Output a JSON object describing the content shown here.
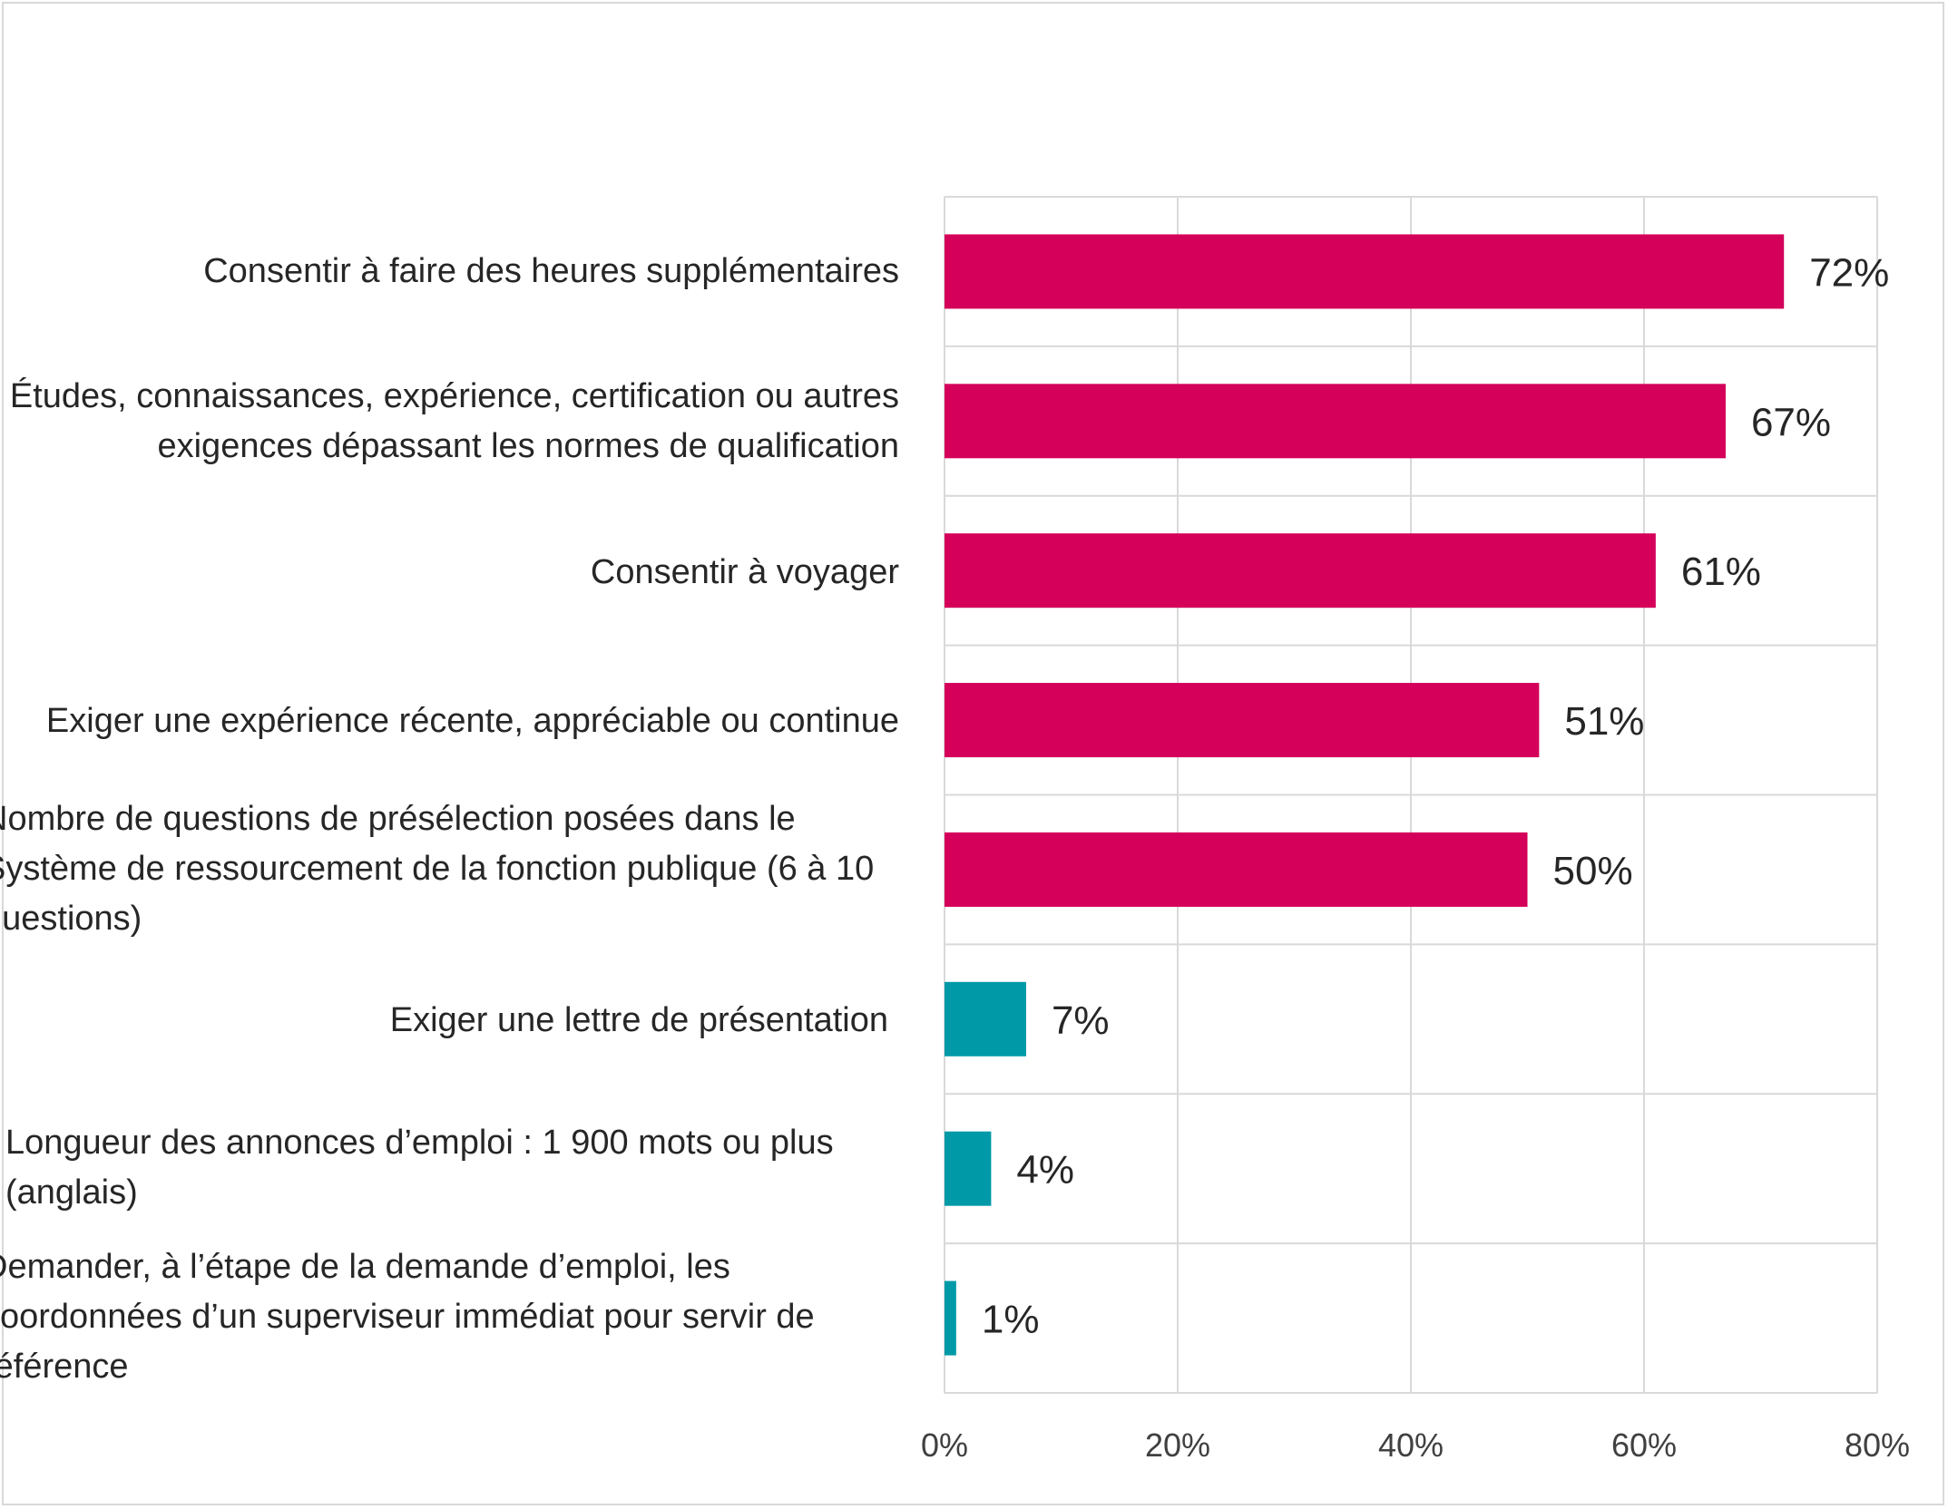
{
  "chart_data": {
    "type": "bar",
    "orientation": "horizontal",
    "categories": [
      "Consentir à faire des heures supplémentaires",
      "Études, connaissances, expérience, certification ou autres exigences dépassant les normes de qualification",
      "Consentir à voyager",
      "Exiger une expérience récente, appréciable ou continue",
      "Nombre de questions de présélection posées dans le Système de ressourcement de la fonction publique (6 à 10 questions)",
      "Exiger une lettre de présentation",
      "Longueur des annonces d’emploi : 1 900 mots ou plus (anglais)",
      "Demander, à l’étape de la demande d’emploi, les coordonnées d’un superviseur immédiat pour servir de référence"
    ],
    "values": [
      72,
      67,
      61,
      51,
      50,
      7,
      4,
      1
    ],
    "value_labels": [
      "72%",
      "67%",
      "61%",
      "51%",
      "50%",
      "7%",
      "4%",
      "1%"
    ],
    "bar_colors": [
      "#d4005a",
      "#d4005a",
      "#d4005a",
      "#d4005a",
      "#d4005a",
      "#0099a8",
      "#0099a8",
      "#0099a8"
    ],
    "xlim": [
      0,
      80
    ],
    "xticks": [
      "0%",
      "20%",
      "40%",
      "60%",
      "80%"
    ],
    "grid": true,
    "title": "",
    "xlabel": "",
    "ylabel": ""
  }
}
